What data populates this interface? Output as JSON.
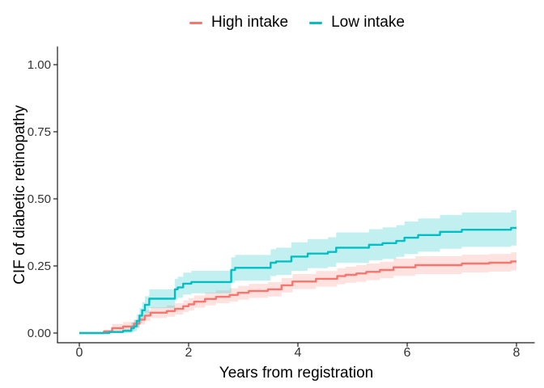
{
  "chart_data": {
    "type": "line",
    "subtype": "step_cumulative_incidence_with_confidence_bands",
    "title": "",
    "xlabel": "Years from registration",
    "ylabel": "CIF of diabetic retinopathy",
    "xlim": [
      0,
      8
    ],
    "ylim": [
      0,
      1
    ],
    "grid": false,
    "legend_position": "top",
    "xticks": [
      {
        "value": 0,
        "label": "0"
      },
      {
        "value": 2,
        "label": "2"
      },
      {
        "value": 4,
        "label": "4"
      },
      {
        "value": 6,
        "label": "6"
      },
      {
        "value": 8,
        "label": "8"
      }
    ],
    "yticks": [
      {
        "value": 0.0,
        "label": "0.00"
      },
      {
        "value": 0.25,
        "label": "0.25"
      },
      {
        "value": 0.5,
        "label": "0.50"
      },
      {
        "value": 0.75,
        "label": "0.75"
      },
      {
        "value": 1.0,
        "label": "1.00"
      }
    ],
    "series": [
      {
        "name": "High intake",
        "color": "#F8766D",
        "band_opacity": 0.21,
        "point_format": [
          "years",
          "cif",
          "ci_lower",
          "ci_upper"
        ],
        "points": [
          [
            0,
            0,
            0,
            0
          ],
          [
            0.45,
            0.006,
            0,
            0.012
          ],
          [
            0.6,
            0.018,
            0.002,
            0.034
          ],
          [
            0.8,
            0.024,
            0.007,
            0.041
          ],
          [
            1.0,
            0.035,
            0.018,
            0.052
          ],
          [
            1.1,
            0.05,
            0.032,
            0.068
          ],
          [
            1.2,
            0.065,
            0.045,
            0.085
          ],
          [
            1.3,
            0.076,
            0.056,
            0.096
          ],
          [
            1.6,
            0.082,
            0.061,
            0.103
          ],
          [
            1.75,
            0.09,
            0.069,
            0.111
          ],
          [
            1.9,
            0.1,
            0.078,
            0.122
          ],
          [
            2.0,
            0.107,
            0.084,
            0.13
          ],
          [
            2.1,
            0.117,
            0.094,
            0.14
          ],
          [
            2.3,
            0.127,
            0.103,
            0.151
          ],
          [
            2.5,
            0.135,
            0.111,
            0.159
          ],
          [
            2.75,
            0.142,
            0.117,
            0.167
          ],
          [
            2.9,
            0.15,
            0.124,
            0.176
          ],
          [
            3.1,
            0.157,
            0.131,
            0.183
          ],
          [
            3.45,
            0.163,
            0.136,
            0.19
          ],
          [
            3.7,
            0.178,
            0.151,
            0.205
          ],
          [
            3.9,
            0.192,
            0.164,
            0.22
          ],
          [
            4.33,
            0.202,
            0.173,
            0.231
          ],
          [
            4.72,
            0.212,
            0.182,
            0.242
          ],
          [
            4.87,
            0.217,
            0.187,
            0.247
          ],
          [
            5.07,
            0.222,
            0.191,
            0.253
          ],
          [
            5.25,
            0.228,
            0.197,
            0.259
          ],
          [
            5.5,
            0.235,
            0.204,
            0.266
          ],
          [
            5.75,
            0.245,
            0.213,
            0.277
          ],
          [
            6.15,
            0.253,
            0.22,
            0.286
          ],
          [
            7.0,
            0.259,
            0.226,
            0.292
          ],
          [
            7.5,
            0.262,
            0.229,
            0.295
          ],
          [
            7.9,
            0.267,
            0.233,
            0.301
          ],
          [
            8.0,
            0.267,
            0.233,
            0.301
          ]
        ]
      },
      {
        "name": "Low intake",
        "color": "#00BFC4",
        "band_opacity": 0.24,
        "point_format": [
          "years",
          "cif",
          "ci_lower",
          "ci_upper"
        ],
        "points": [
          [
            0,
            0,
            0,
            0
          ],
          [
            0.55,
            0.004,
            0,
            0.008
          ],
          [
            0.8,
            0.008,
            0.001,
            0.016
          ],
          [
            0.95,
            0.018,
            0.004,
            0.04
          ],
          [
            1.0,
            0.025,
            0.007,
            0.048
          ],
          [
            1.05,
            0.045,
            0.02,
            0.07
          ],
          [
            1.1,
            0.065,
            0.037,
            0.093
          ],
          [
            1.15,
            0.085,
            0.055,
            0.115
          ],
          [
            1.2,
            0.105,
            0.073,
            0.137
          ],
          [
            1.28,
            0.128,
            0.093,
            0.163
          ],
          [
            1.75,
            0.163,
            0.124,
            0.202
          ],
          [
            1.8,
            0.17,
            0.131,
            0.21
          ],
          [
            1.9,
            0.184,
            0.143,
            0.225
          ],
          [
            2.05,
            0.19,
            0.148,
            0.232
          ],
          [
            2.78,
            0.235,
            0.188,
            0.282
          ],
          [
            2.85,
            0.243,
            0.195,
            0.291
          ],
          [
            3.5,
            0.262,
            0.212,
            0.312
          ],
          [
            3.6,
            0.267,
            0.216,
            0.318
          ],
          [
            3.88,
            0.285,
            0.232,
            0.338
          ],
          [
            4.18,
            0.296,
            0.242,
            0.35
          ],
          [
            4.55,
            0.302,
            0.247,
            0.357
          ],
          [
            4.7,
            0.318,
            0.261,
            0.375
          ],
          [
            5.3,
            0.329,
            0.271,
            0.387
          ],
          [
            5.55,
            0.335,
            0.276,
            0.394
          ],
          [
            5.8,
            0.343,
            0.284,
            0.402
          ],
          [
            5.95,
            0.355,
            0.294,
            0.416
          ],
          [
            6.2,
            0.365,
            0.303,
            0.427
          ],
          [
            6.6,
            0.377,
            0.314,
            0.44
          ],
          [
            7.0,
            0.385,
            0.321,
            0.449
          ],
          [
            7.9,
            0.392,
            0.326,
            0.458
          ],
          [
            8.0,
            0.392,
            0.326,
            0.458
          ]
        ]
      }
    ]
  },
  "style": {
    "axis_color": "#1a1a1a",
    "tick_label_color": "#333333",
    "background": "#ffffff"
  }
}
